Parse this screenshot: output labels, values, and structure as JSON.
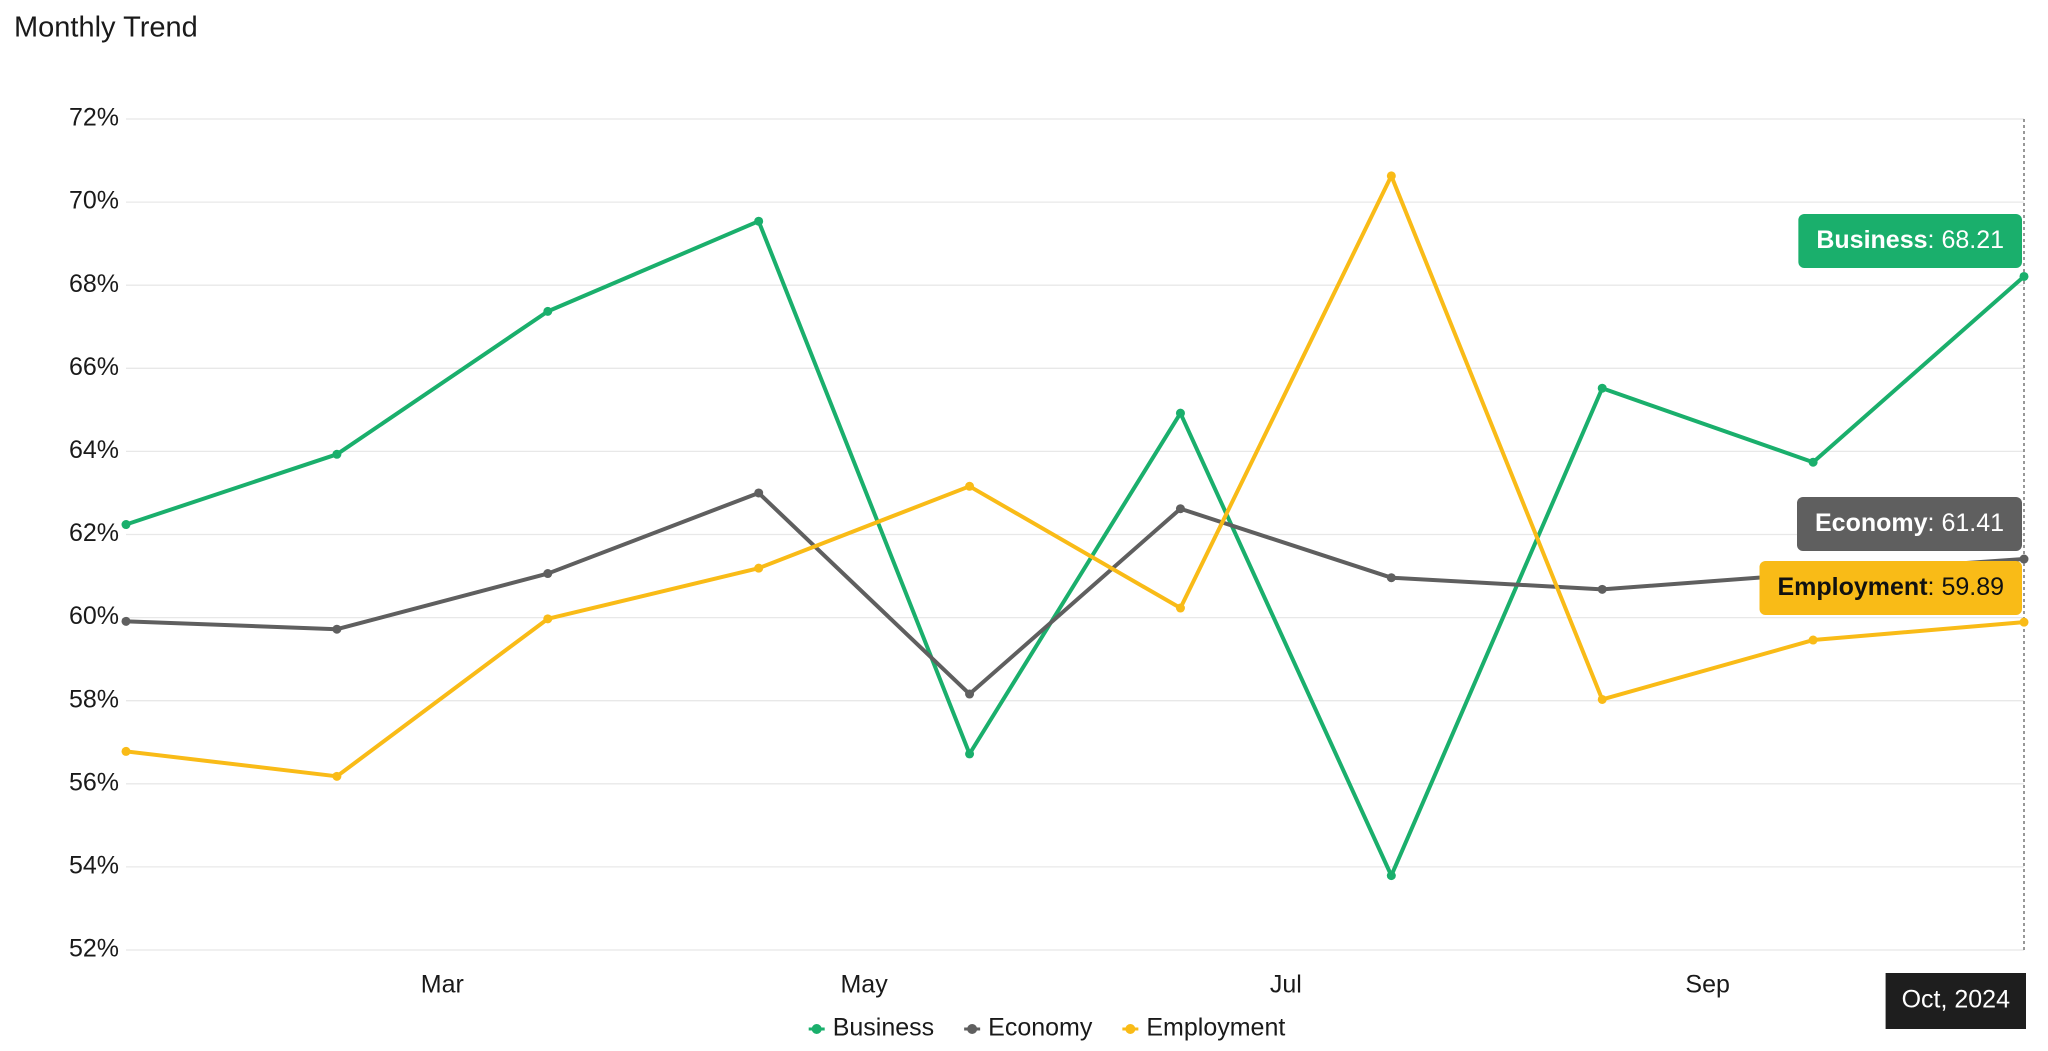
{
  "chart_data": {
    "type": "line",
    "title": "Monthly Trend",
    "categories": [
      null,
      null,
      null,
      null,
      null,
      null,
      null,
      null,
      null,
      "Oct, 2024"
    ],
    "xticks": [
      {
        "value": 1.5,
        "label": "Mar"
      },
      {
        "value": 3.5,
        "label": "May"
      },
      {
        "value": 5.5,
        "label": "Jul"
      },
      {
        "value": 7.5,
        "label": "Sep"
      }
    ],
    "series": [
      {
        "name": "Business",
        "color": "#1aaf6c",
        "values": [
          62.24,
          63.93,
          67.37,
          69.54,
          56.72,
          64.92,
          53.79,
          65.52,
          63.74,
          68.21
        ]
      },
      {
        "name": "Economy",
        "color": "#5f5f5f",
        "values": [
          59.91,
          59.72,
          61.06,
          63.0,
          58.16,
          62.62,
          60.96,
          60.68,
          61.06,
          61.41
        ]
      },
      {
        "name": "Employment",
        "color": "#f9bb17",
        "values": [
          56.78,
          56.18,
          59.97,
          61.19,
          63.16,
          60.23,
          70.63,
          58.03,
          59.46,
          59.89
        ]
      }
    ],
    "ylim": [
      52,
      72
    ],
    "yticks": [
      {
        "value": 52,
        "label": "52%"
      },
      {
        "value": 54,
        "label": "54%"
      },
      {
        "value": 56,
        "label": "56%"
      },
      {
        "value": 58,
        "label": "58%"
      },
      {
        "value": 60,
        "label": "60%"
      },
      {
        "value": 62,
        "label": "62%"
      },
      {
        "value": 64,
        "label": "64%"
      },
      {
        "value": 66,
        "label": "66%"
      },
      {
        "value": 68,
        "label": "68%"
      },
      {
        "value": 70,
        "label": "70%"
      },
      {
        "value": 72,
        "label": "72%"
      }
    ],
    "grid": true
  }
}
